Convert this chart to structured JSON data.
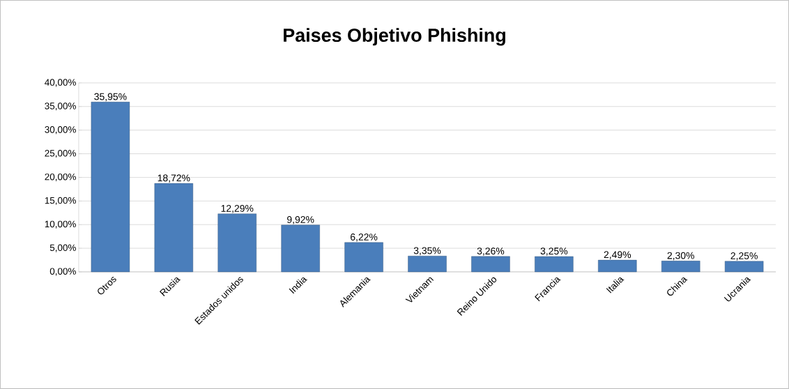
{
  "chart_data": {
    "type": "bar",
    "title": "Paises Objetivo Phishing",
    "categories": [
      "Otros",
      "Rusia",
      "Estados unidos",
      "India",
      "Alemania",
      "Vietnam",
      "Reino Unido",
      "Francia",
      "Italia",
      "China",
      "Ucrania"
    ],
    "values": [
      35.95,
      18.72,
      12.29,
      9.92,
      6.22,
      3.35,
      3.26,
      3.25,
      2.49,
      2.3,
      2.25
    ],
    "value_labels": [
      "35,95%",
      "18,72%",
      "12,29%",
      "9,92%",
      "6,22%",
      "3,35%",
      "3,26%",
      "3,25%",
      "2,49%",
      "2,30%",
      "2,25%"
    ],
    "color": "#4a7ebb",
    "ylim": [
      0,
      40
    ],
    "yticks": [
      {
        "value": 0,
        "label": "0,00%"
      },
      {
        "value": 5,
        "label": "5,00%"
      },
      {
        "value": 10,
        "label": "10,00%"
      },
      {
        "value": 15,
        "label": "15,00%"
      },
      {
        "value": 20,
        "label": "20,00%"
      },
      {
        "value": 25,
        "label": "25,00%"
      },
      {
        "value": 30,
        "label": "30,00%"
      },
      {
        "value": 35,
        "label": "35,00%"
      },
      {
        "value": 40,
        "label": "40,00%"
      }
    ],
    "grid": "y"
  }
}
